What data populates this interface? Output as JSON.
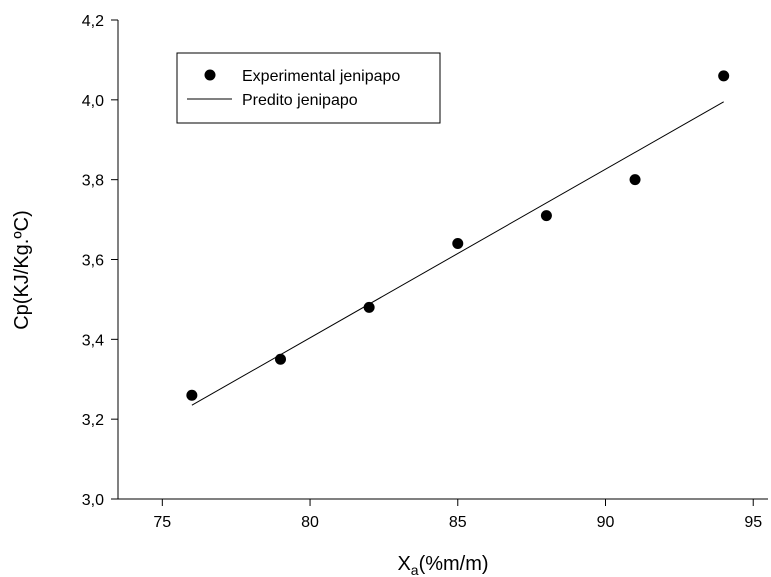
{
  "chart_data": {
    "type": "scatter",
    "title": "",
    "xlabel": "X",
    "xlabel_subscript": "a",
    "xlabel_suffix": "(%m/m)",
    "ylabel": "Cp(KJ/Kg.ºC)",
    "xlim": [
      73.5,
      95.5
    ],
    "ylim": [
      3.0,
      4.2
    ],
    "xticks": [
      75,
      80,
      85,
      90,
      95
    ],
    "xtick_labels": [
      "75",
      "80",
      "85",
      "90",
      "95"
    ],
    "yticks": [
      3.0,
      3.2,
      3.4,
      3.6,
      3.8,
      4.0,
      4.2
    ],
    "ytick_labels": [
      "3,0",
      "3,2",
      "3,4",
      "3,6",
      "3,8",
      "4,0",
      "4,2"
    ],
    "grid": false,
    "legend_position": "top-left",
    "series": [
      {
        "name": "Experimental jenipapo",
        "style": "markers",
        "color": "#000000",
        "x": [
          76,
          79,
          82,
          85,
          88,
          91,
          94
        ],
        "y": [
          3.26,
          3.35,
          3.48,
          3.64,
          3.71,
          3.8,
          4.06
        ]
      },
      {
        "name": "Predito jenipapo",
        "style": "line",
        "color": "#000000",
        "x": [
          76,
          94
        ],
        "y": [
          3.235,
          3.995
        ]
      }
    ]
  }
}
